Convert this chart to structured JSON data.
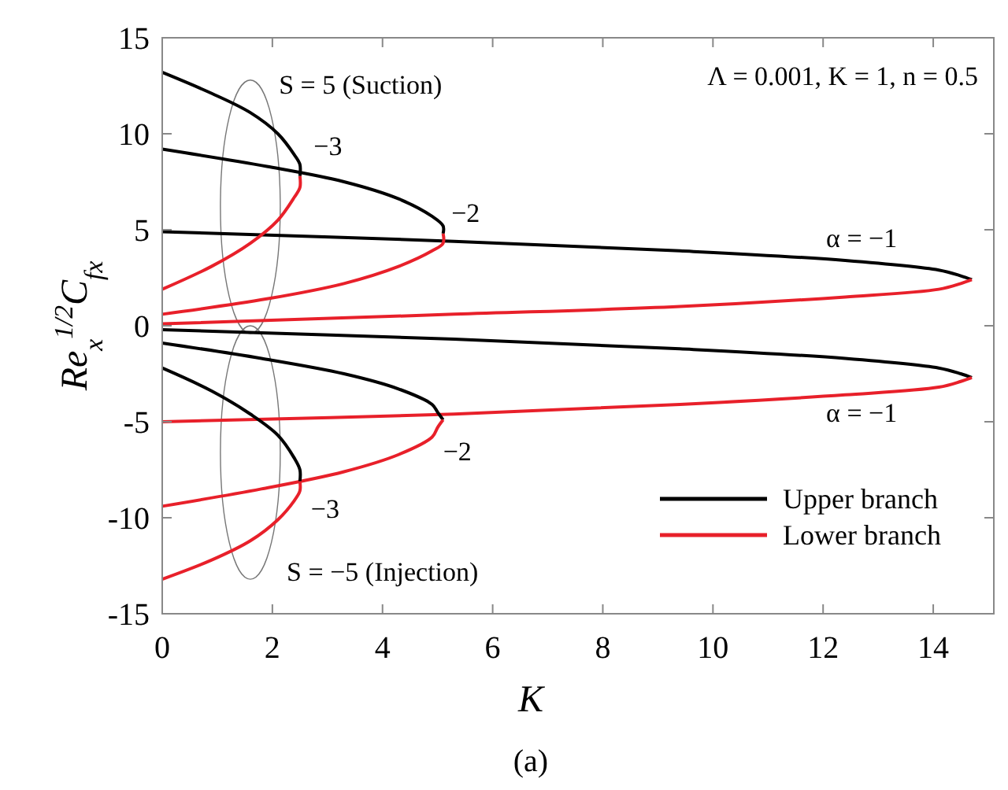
{
  "chart_data": {
    "type": "line",
    "xlabel": "K",
    "ylabel": "Re$_{x}$$^{1/2}$C$_{fx}$",
    "xlim": [
      0,
      15.1
    ],
    "ylim": [
      -15,
      15
    ],
    "xticks": [
      0,
      2,
      4,
      6,
      8,
      10,
      12,
      14
    ],
    "yticks": [
      -15,
      -10,
      -5,
      0,
      5,
      10,
      15
    ],
    "grid": false,
    "legend": "bottom right",
    "line_style": "solid",
    "series": [
      {
        "name": "Upper branch",
        "color": "#000000",
        "x": [
          0,
          5.3,
          9.4,
          12.4,
          14.1,
          14.5,
          14.7
        ],
        "values": [
          4.9,
          4.4,
          3.9,
          3.4,
          2.9,
          2.6,
          2.4
        ]
      },
      {
        "name": "Lower branch",
        "color": "#e8202a",
        "x": [
          0,
          5.3,
          9.4,
          12.4,
          14.1,
          14.5,
          14.7
        ],
        "values": [
          0.1,
          0.6,
          1,
          1.5,
          1.9,
          2.2,
          2.4
        ]
      },
      {
        "color": "#000000",
        "x": [
          0,
          0.9,
          1.6,
          2.1,
          2.4,
          2.5,
          2.5
        ],
        "values": [
          13.2,
          12.1,
          11.1,
          10,
          8.9,
          8.4,
          7.8
        ]
      },
      {
        "color": "#e8202a",
        "x": [
          0,
          0.9,
          1.6,
          2.1,
          2.4,
          2.5,
          2.5
        ],
        "values": [
          1.9,
          3.1,
          4.3,
          5.5,
          6.7,
          7.2,
          7.8
        ]
      },
      {
        "color": "#000000",
        "x": [
          0,
          1.9,
          3.3,
          4.3,
          4.9,
          5.1,
          5.1
        ],
        "values": [
          9.2,
          8.3,
          7.5,
          6.6,
          5.7,
          5.2,
          4.8
        ]
      },
      {
        "color": "#e8202a",
        "x": [
          0,
          1.9,
          3.3,
          4.3,
          4.9,
          5.1,
          5.1
        ],
        "values": [
          0.6,
          1.4,
          2.2,
          3.1,
          3.9,
          4.3,
          4.8
        ]
      },
      {
        "color": "#000000",
        "x": [
          0,
          5.3,
          9.4,
          12.4,
          14.1,
          14.5,
          14.7
        ],
        "values": [
          -0.2,
          -0.7,
          -1.2,
          -1.7,
          -2.2,
          -2.5,
          -2.7
        ]
      },
      {
        "color": "#e8202a",
        "x": [
          0,
          5.3,
          9.4,
          12.4,
          14.1,
          14.5,
          14.7
        ],
        "values": [
          -5,
          -4.6,
          -4.1,
          -3.6,
          -3.2,
          -2.9,
          -2.7
        ]
      },
      {
        "color": "#000000",
        "x": [
          0,
          1.8,
          3.3,
          4.3,
          4.9,
          5,
          5.1
        ],
        "values": [
          -0.9,
          -1.7,
          -2.5,
          -3.3,
          -4.1,
          -4.5,
          -4.9
        ]
      },
      {
        "color": "#e8202a",
        "x": [
          0,
          1.8,
          3.3,
          4.3,
          4.9,
          5,
          5.1
        ],
        "values": [
          -9.4,
          -8.5,
          -7.6,
          -6.7,
          -5.8,
          -5.3,
          -4.9
        ]
      },
      {
        "color": "#000000",
        "x": [
          0,
          0.9,
          1.6,
          2.1,
          2.4,
          2.5,
          2.5
        ],
        "values": [
          -2.2,
          -3.4,
          -4.6,
          -5.7,
          -6.9,
          -7.5,
          -8.1
        ]
      },
      {
        "color": "#e8202a",
        "x": [
          0,
          0.9,
          1.6,
          2.1,
          2.4,
          2.5,
          2.5
        ],
        "values": [
          -13.2,
          -12.2,
          -11.2,
          -10.1,
          -9.1,
          -8.6,
          -8.1
        ]
      }
    ],
    "annotations": [
      "S = 5 (Suction)",
      "−3",
      "−2",
      "α = −1",
      "α = −1",
      "−2",
      "−3",
      "S = −5 (Injection)",
      "Λ = 0.001, K = 1, n = 0.5",
      "(a)"
    ]
  }
}
